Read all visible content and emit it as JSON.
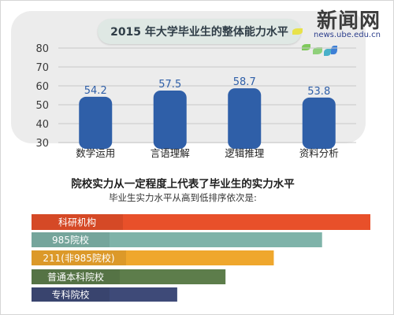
{
  "logo": {
    "main": "新闻网",
    "sub": "news.ube.edu.cn"
  },
  "chart_data": [
    {
      "type": "bar",
      "title": "2015 年大学毕业生的整体能力水平",
      "categories": [
        "数学运用",
        "言语理解",
        "逻辑推理",
        "资料分析"
      ],
      "values": [
        54.2,
        57.5,
        58.7,
        53.8
      ],
      "value_labels": [
        "54.2",
        "57.5",
        "58.7",
        "53.8"
      ],
      "ylim": [
        30,
        80
      ],
      "yticks": [
        30,
        40,
        50,
        60,
        70,
        80
      ],
      "ytick_labels": [
        "30",
        "40",
        "50",
        "60",
        "70",
        "80"
      ],
      "grid": true,
      "colors": {
        "bar": "#2f5fa8",
        "label": "#2f5fa8"
      }
    },
    {
      "type": "bar",
      "orientation": "horizontal",
      "title": "院校实力从一定程度上代表了毕业生的实力水平",
      "subtitle": "毕业生实力水平从高到低排序依次是:",
      "categories": [
        "科研机构",
        "985院校",
        "211(非985院校)",
        "普通本科院校",
        "专科院校"
      ],
      "values": [
        5,
        4,
        3,
        2,
        1
      ],
      "colors": [
        "#e8502a",
        "#7fb3a9",
        "#efa72d",
        "#5d7d4b",
        "#3e4a78"
      ]
    }
  ]
}
